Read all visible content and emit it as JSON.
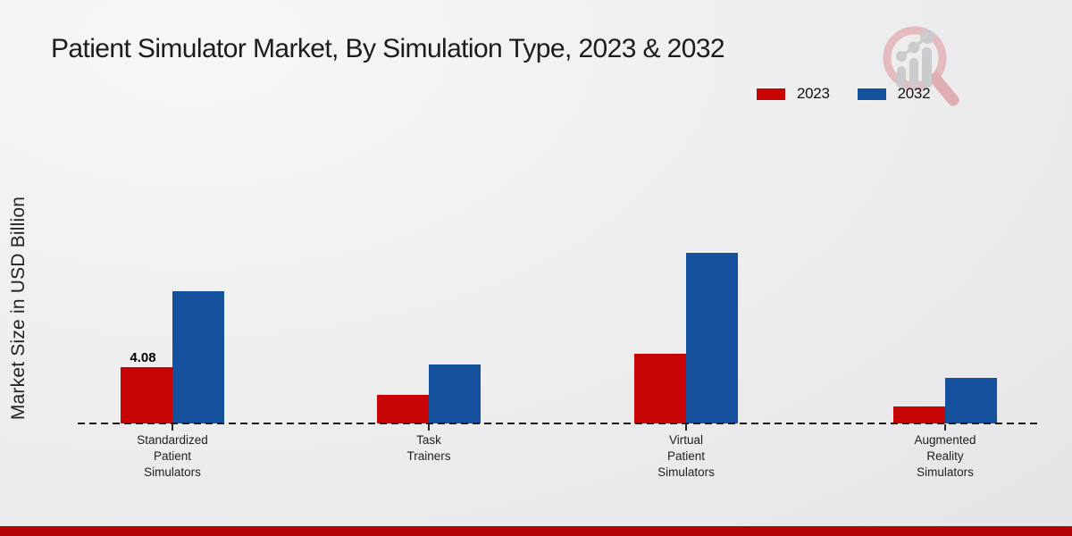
{
  "title": "Patient Simulator Market, By Simulation Type, 2023 & 2032",
  "chart_data": {
    "type": "bar",
    "title": "Patient Simulator Market, By Simulation Type, 2023 & 2032",
    "xlabel": "",
    "ylabel": "Market Size in USD Billion",
    "categories": [
      "Standardized\nPatient\nSimulators",
      "Task\nTrainers",
      "Virtual\nPatient\nSimulators",
      "Augmented\nReality\nSimulators"
    ],
    "series": [
      {
        "name": "2023",
        "color": "#c80303",
        "values": [
          4.08,
          2.07,
          5.06,
          1.23
        ]
      },
      {
        "name": "2032",
        "color": "#15519d",
        "values": [
          9.58,
          4.27,
          12.37,
          3.3
        ]
      }
    ],
    "ylim": [
      0,
      14
    ],
    "grid": false,
    "legend_position": "top-right",
    "axis_style": "dashed-baseline-only",
    "bar_labels": [
      {
        "series_index": 0,
        "category_index": 0,
        "text": "4.08"
      }
    ]
  },
  "footer": {
    "band_color": "#b30505"
  }
}
